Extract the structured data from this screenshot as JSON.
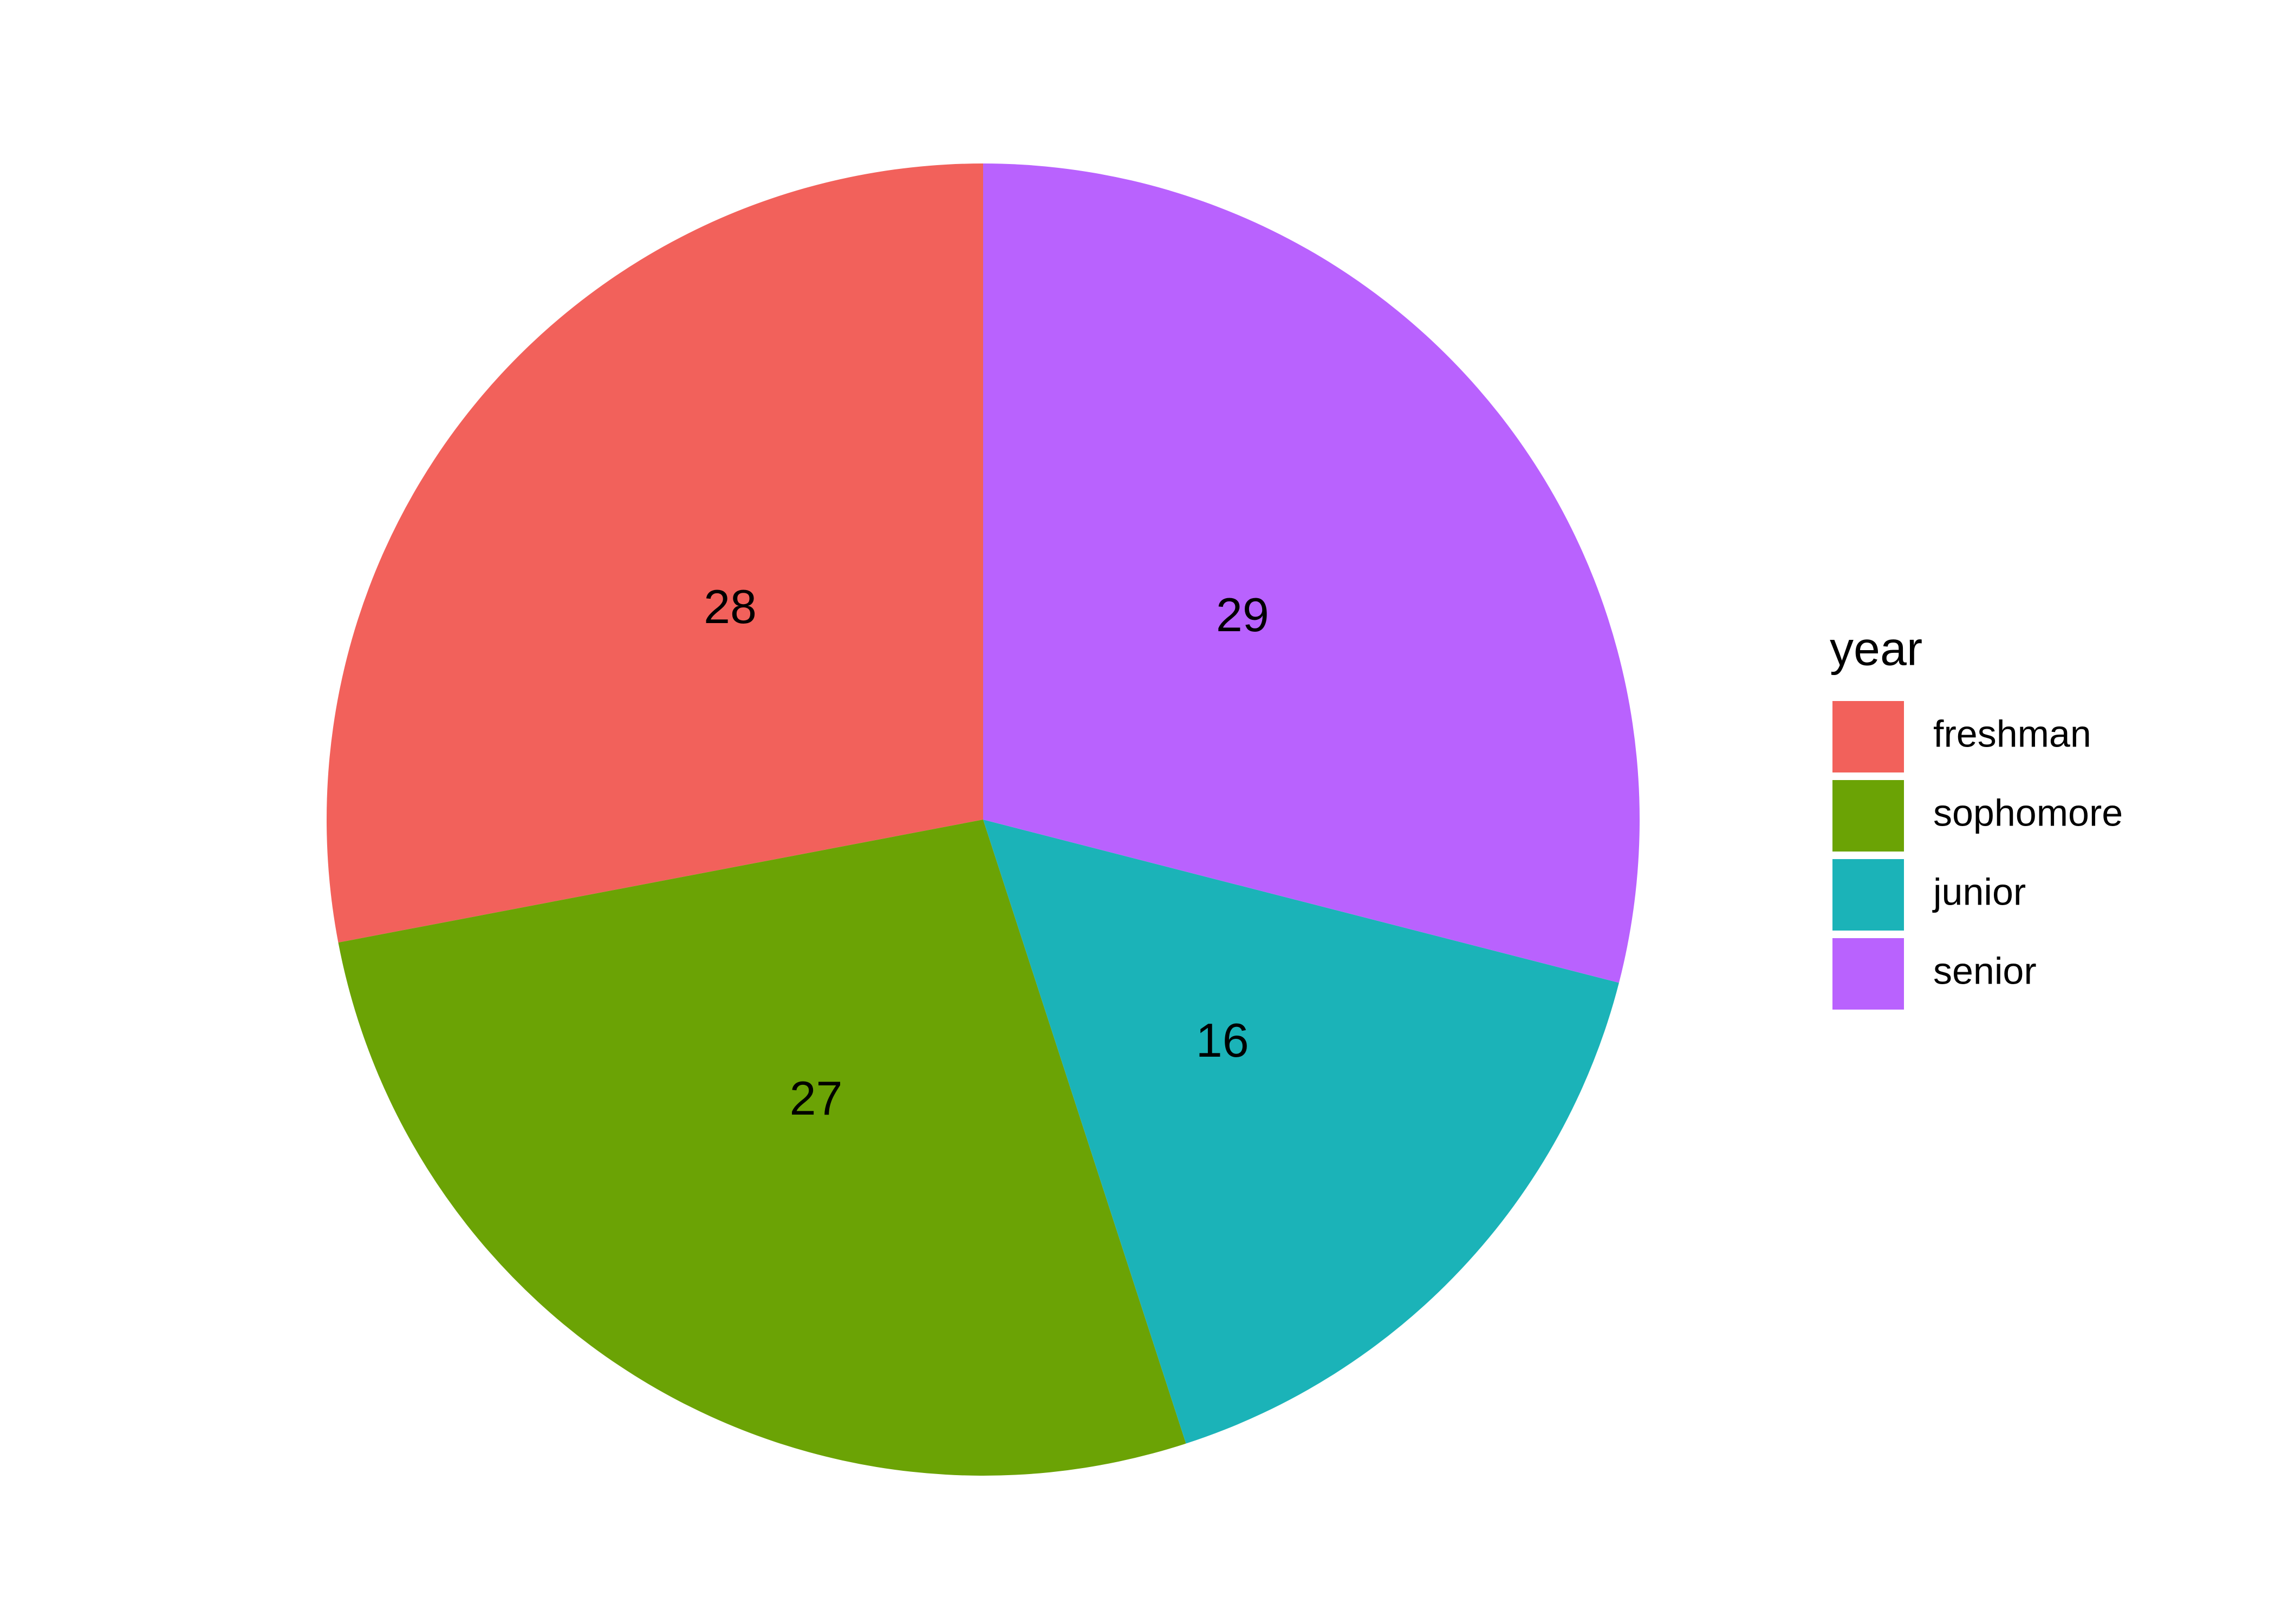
{
  "chart_data": {
    "type": "pie",
    "categories": [
      "freshman",
      "sophomore",
      "junior",
      "senior"
    ],
    "values": [
      28,
      27,
      16,
      29
    ],
    "colors": [
      "#f2615b",
      "#6ba305",
      "#1bb3b8",
      "#b962fe"
    ],
    "legend_title": "year",
    "legend": "right"
  }
}
